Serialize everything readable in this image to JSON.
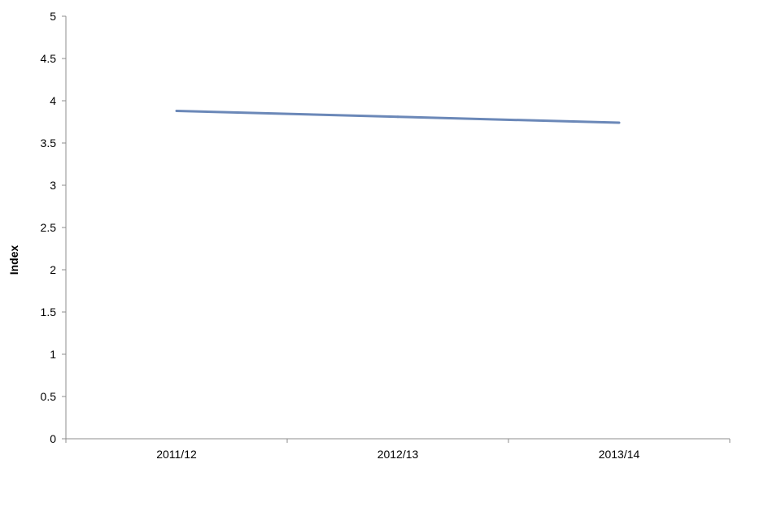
{
  "chart_data": {
    "type": "line",
    "categories": [
      "2011/12",
      "2012/13",
      "2013/14"
    ],
    "series": [
      {
        "values": [
          3.88,
          3.81,
          3.74
        ]
      }
    ],
    "title": "",
    "xlabel": "",
    "ylabel": "Index",
    "ylim": [
      0,
      5
    ],
    "yticks": [
      "0",
      "0.5",
      "1",
      "1.5",
      "2",
      "2.5",
      "3",
      "3.5",
      "4",
      "4.5",
      "5"
    ],
    "grid": false,
    "legend": "none",
    "line_color": "#6b88b8"
  }
}
